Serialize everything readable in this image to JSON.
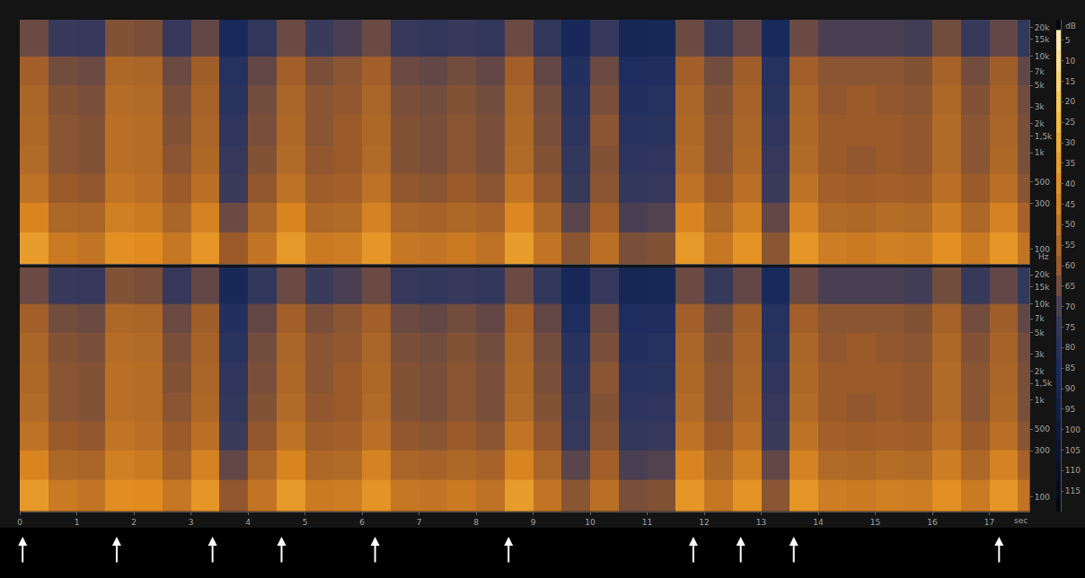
{
  "chart_data": {
    "type": "heatmap",
    "x_label": "sec",
    "y_label": "Hz",
    "log": "y",
    "xlim": [
      0,
      17.7
    ],
    "xticks": [
      0,
      1,
      2,
      3,
      4,
      5,
      6,
      7,
      8,
      9,
      10,
      11,
      12,
      13,
      14,
      15,
      16,
      17
    ],
    "ylim": [
      70,
      24000
    ],
    "yticks": [
      100,
      300,
      500,
      {
        "value": 1000,
        "label": "1k"
      },
      {
        "value": 1500,
        "label": "1,5k"
      },
      {
        "value": 2000,
        "label": "2k"
      },
      {
        "value": 3000,
        "label": "3k"
      },
      {
        "value": 5000,
        "label": "5k"
      },
      {
        "value": 7000,
        "label": "7k"
      },
      {
        "value": 10000,
        "label": "10k"
      },
      {
        "value": 15000,
        "label": "15k"
      },
      {
        "value": 20000,
        "label": "20k"
      }
    ],
    "x": [
      0,
      0.5,
      1,
      1.5,
      2,
      2.5,
      3,
      3.5,
      4,
      4.5,
      5,
      5.5,
      6,
      6.5,
      7,
      7.5,
      8,
      8.5,
      9,
      9.5,
      10,
      10.5,
      11,
      11.5,
      12,
      12.5,
      13,
      13.5,
      14,
      14.5,
      15,
      15.5,
      16,
      16.5,
      17,
      17.5,
      18
    ],
    "y": [
      70,
      150,
      300,
      600,
      1200,
      2500,
      5000,
      10000,
      24000
    ],
    "panels": [
      {
        "cells": [
          [
            36,
            48,
            50,
            40,
            42,
            49,
            38,
            60,
            50,
            37,
            48,
            47,
            38,
            49,
            50,
            48,
            51,
            36,
            50,
            62,
            52,
            64,
            63,
            37,
            49,
            39,
            62,
            38,
            47,
            48,
            46,
            47,
            40,
            48,
            38,
            50
          ],
          [
            44,
            55,
            56,
            46,
            48,
            56,
            45,
            66,
            56,
            44,
            55,
            54,
            45,
            56,
            57,
            55,
            57,
            43,
            56,
            68,
            58,
            70,
            69,
            44,
            55,
            46,
            67,
            45,
            54,
            55,
            53,
            54,
            47,
            55,
            45,
            57
          ],
          [
            51,
            60,
            61,
            50,
            52,
            60,
            52,
            72,
            61,
            51,
            59,
            58,
            51,
            61,
            62,
            60,
            62,
            50,
            61,
            73,
            62,
            75,
            74,
            51,
            60,
            52,
            72,
            51,
            58,
            59,
            58,
            59,
            52,
            60,
            52,
            62
          ],
          [
            54,
            62,
            63,
            52,
            53,
            62,
            55,
            74,
            63,
            54,
            61,
            60,
            54,
            63,
            64,
            62,
            64,
            54,
            63,
            75,
            63,
            77,
            76,
            54,
            62,
            55,
            74,
            54,
            60,
            61,
            60,
            61,
            54,
            62,
            55,
            64
          ],
          [
            55,
            62,
            63,
            52,
            53,
            63,
            56,
            76,
            64,
            55,
            62,
            60,
            55,
            63,
            64,
            62,
            64,
            55,
            64,
            77,
            62,
            79,
            78,
            55,
            62,
            56,
            76,
            55,
            60,
            60,
            60,
            61,
            54,
            62,
            56,
            64
          ],
          [
            56,
            63,
            64,
            53,
            54,
            64,
            57,
            78,
            65,
            56,
            62,
            61,
            56,
            64,
            65,
            63,
            65,
            56,
            65,
            79,
            64,
            81,
            80,
            56,
            63,
            57,
            78,
            56,
            61,
            60,
            61,
            62,
            55,
            63,
            57,
            65
          ],
          [
            58,
            65,
            66,
            55,
            56,
            66,
            59,
            80,
            67,
            58,
            64,
            62,
            58,
            66,
            67,
            65,
            67,
            58,
            67,
            81,
            66,
            83,
            82,
            58,
            65,
            59,
            80,
            58,
            62,
            62,
            62,
            63,
            57,
            65,
            59,
            67
          ],
          [
            66,
            73,
            74,
            63,
            64,
            74,
            67,
            86,
            75,
            66,
            72,
            70,
            66,
            74,
            75,
            73,
            75,
            66,
            75,
            87,
            74,
            89,
            88,
            66,
            73,
            67,
            86,
            66,
            70,
            70,
            70,
            71,
            65,
            73,
            67,
            75
          ]
        ]
      },
      {
        "cells": [
          [
            37,
            48,
            50,
            41,
            42,
            49,
            38,
            61,
            50,
            37,
            48,
            47,
            39,
            49,
            50,
            48,
            51,
            36,
            50,
            62,
            52,
            64,
            63,
            38,
            49,
            39,
            62,
            38,
            47,
            48,
            46,
            47,
            40,
            48,
            38,
            50
          ],
          [
            44,
            55,
            56,
            46,
            48,
            57,
            45,
            67,
            56,
            44,
            55,
            54,
            45,
            56,
            57,
            55,
            57,
            44,
            56,
            68,
            58,
            70,
            69,
            44,
            55,
            46,
            67,
            45,
            54,
            55,
            53,
            54,
            47,
            55,
            45,
            57
          ],
          [
            51,
            60,
            61,
            50,
            52,
            60,
            52,
            72,
            61,
            51,
            59,
            58,
            52,
            61,
            62,
            60,
            62,
            50,
            61,
            74,
            62,
            75,
            74,
            51,
            60,
            52,
            72,
            51,
            58,
            59,
            58,
            59,
            52,
            60,
            52,
            62
          ],
          [
            54,
            62,
            63,
            52,
            53,
            62,
            55,
            75,
            63,
            54,
            61,
            60,
            54,
            63,
            64,
            62,
            64,
            54,
            63,
            75,
            63,
            77,
            76,
            54,
            62,
            55,
            74,
            54,
            60,
            61,
            60,
            61,
            54,
            62,
            55,
            64
          ],
          [
            55,
            62,
            63,
            52,
            53,
            63,
            56,
            76,
            64,
            55,
            62,
            60,
            55,
            63,
            64,
            62,
            64,
            55,
            64,
            77,
            62,
            79,
            78,
            55,
            62,
            56,
            76,
            55,
            60,
            60,
            60,
            61,
            54,
            62,
            56,
            64
          ],
          [
            56,
            63,
            64,
            53,
            54,
            64,
            57,
            78,
            65,
            56,
            62,
            61,
            56,
            64,
            65,
            63,
            65,
            56,
            65,
            79,
            64,
            81,
            80,
            56,
            63,
            57,
            78,
            56,
            61,
            60,
            61,
            62,
            55,
            63,
            57,
            65
          ],
          [
            58,
            65,
            66,
            55,
            56,
            66,
            59,
            81,
            67,
            58,
            64,
            62,
            58,
            66,
            67,
            65,
            67,
            58,
            67,
            82,
            66,
            83,
            82,
            58,
            65,
            59,
            80,
            58,
            62,
            62,
            62,
            63,
            57,
            65,
            59,
            67
          ],
          [
            66,
            73,
            74,
            63,
            64,
            74,
            67,
            87,
            75,
            66,
            72,
            70,
            66,
            74,
            75,
            73,
            75,
            66,
            75,
            88,
            74,
            89,
            88,
            66,
            73,
            67,
            86,
            66,
            70,
            70,
            70,
            71,
            65,
            73,
            67,
            75
          ]
        ]
      }
    ],
    "colorbar": {
      "title": "dB",
      "range": [
        0,
        120
      ],
      "ticks": [
        5,
        10,
        15,
        20,
        25,
        30,
        35,
        40,
        45,
        50,
        55,
        60,
        65,
        70,
        75,
        80,
        85,
        90,
        95,
        100,
        105,
        110,
        115
      ]
    },
    "events": [
      0.05,
      1.7,
      3.38,
      4.59,
      6.23,
      8.57,
      11.81,
      12.64,
      13.57,
      17.17
    ]
  }
}
